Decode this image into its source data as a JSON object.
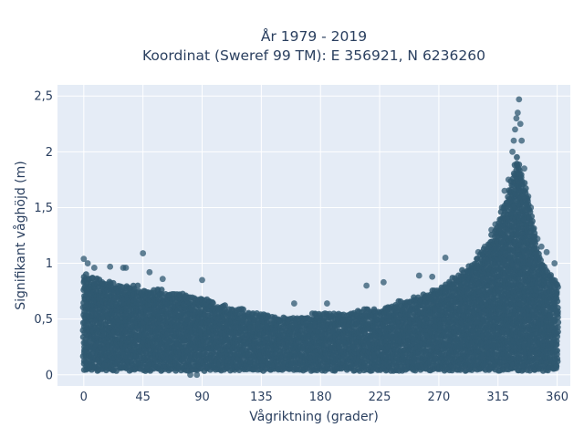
{
  "chart_data": {
    "type": "scatter",
    "title_line1": "År 1979 - 2019",
    "title_line2": "Koordinat (Sweref 99 TM): E 356921, N 6236260",
    "xlabel": "Vågriktning (grader)",
    "ylabel": "Signifikant våghöjd (m)",
    "xlim": [
      -20,
      370
    ],
    "ylim": [
      -0.1,
      2.6
    ],
    "x_ticks": [
      0,
      45,
      90,
      135,
      180,
      225,
      270,
      315,
      360
    ],
    "x_tick_labels": [
      "0",
      "45",
      "90",
      "135",
      "180",
      "225",
      "270",
      "315",
      "360"
    ],
    "y_ticks": [
      0,
      0.5,
      1,
      1.5,
      2,
      2.5
    ],
    "y_tick_labels": [
      "0",
      "0,5",
      "1",
      "1,5",
      "2",
      "2,5"
    ],
    "grid": true,
    "series": [
      {
        "color": "#2f5870",
        "envelope": {
          "x": [
            0,
            15,
            30,
            45,
            60,
            75,
            90,
            105,
            120,
            135,
            150,
            165,
            180,
            195,
            210,
            225,
            240,
            255,
            270,
            285,
            300,
            315,
            322,
            330,
            338,
            345,
            352,
            360
          ],
          "y_min": [
            0.05,
            0.05,
            0.05,
            0.05,
            0.05,
            0.05,
            0.05,
            0.05,
            0.05,
            0.05,
            0.05,
            0.05,
            0.05,
            0.05,
            0.05,
            0.05,
            0.05,
            0.05,
            0.05,
            0.05,
            0.05,
            0.05,
            0.05,
            0.05,
            0.05,
            0.05,
            0.05,
            0.05
          ],
          "y_max": [
            0.9,
            0.85,
            0.8,
            0.78,
            0.75,
            0.72,
            0.7,
            0.62,
            0.58,
            0.55,
            0.52,
            0.53,
            0.55,
            0.55,
            0.58,
            0.6,
            0.65,
            0.7,
            0.78,
            0.9,
            1.05,
            1.35,
            1.6,
            1.95,
            1.6,
            1.15,
            0.95,
            0.85
          ]
        },
        "outliers": [
          [
            0,
            1.04
          ],
          [
            3,
            1.0
          ],
          [
            8,
            0.96
          ],
          [
            20,
            0.97
          ],
          [
            30,
            0.96
          ],
          [
            32,
            0.96
          ],
          [
            45,
            1.09
          ],
          [
            50,
            0.92
          ],
          [
            60,
            0.86
          ],
          [
            90,
            0.85
          ],
          [
            160,
            0.64
          ],
          [
            185,
            0.64
          ],
          [
            215,
            0.8
          ],
          [
            228,
            0.83
          ],
          [
            255,
            0.89
          ],
          [
            265,
            0.88
          ],
          [
            275,
            1.05
          ],
          [
            292,
            0.93
          ],
          [
            300,
            1.1
          ],
          [
            305,
            1.15
          ],
          [
            310,
            1.3
          ],
          [
            313,
            1.35
          ],
          [
            318,
            1.5
          ],
          [
            320,
            1.65
          ],
          [
            323,
            1.75
          ],
          [
            326,
            2.0
          ],
          [
            327,
            2.1
          ],
          [
            328,
            2.2
          ],
          [
            329,
            2.3
          ],
          [
            330,
            2.35
          ],
          [
            331,
            2.47
          ],
          [
            332,
            2.25
          ],
          [
            333,
            2.1
          ],
          [
            335,
            1.85
          ],
          [
            338,
            1.6
          ],
          [
            340,
            1.5
          ],
          [
            342,
            1.3
          ],
          [
            345,
            1.22
          ],
          [
            348,
            1.15
          ],
          [
            352,
            1.1
          ],
          [
            358,
            1.0
          ],
          [
            81,
            0.0
          ],
          [
            86,
            0.0
          ]
        ]
      }
    ]
  }
}
